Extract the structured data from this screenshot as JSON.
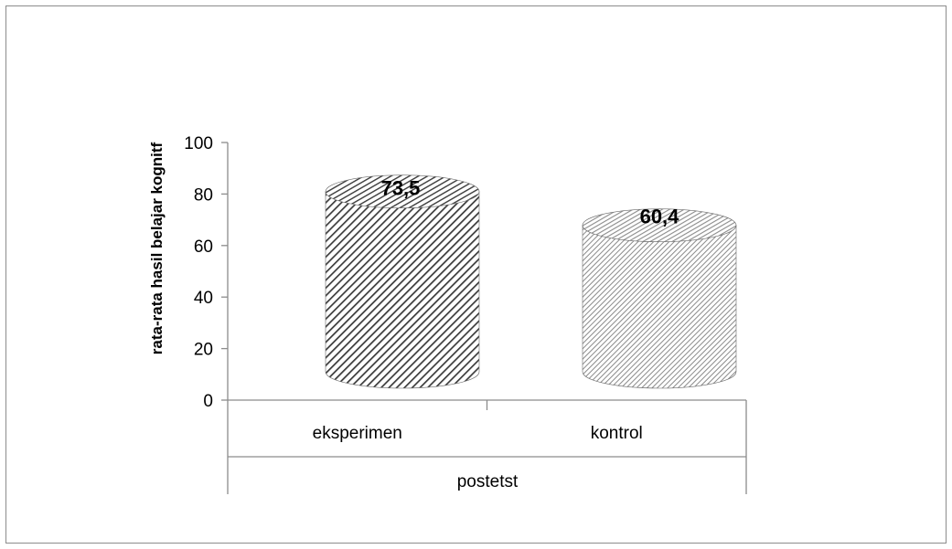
{
  "chart_data": {
    "type": "bar",
    "bar_shape": "cylinder",
    "title": "",
    "ylabel": "rata-rata hasil belajar kognitf",
    "xlabel": "postetst",
    "categories": [
      "eksperimen",
      "kontrol"
    ],
    "values": [
      73.5,
      60.4
    ],
    "data_labels": [
      "73,5",
      "60,4"
    ],
    "ylim": [
      0,
      100
    ],
    "yticks": [
      0,
      20,
      40,
      60,
      80,
      100
    ],
    "ytick_labels": [
      "0",
      "20",
      "40",
      "60",
      "80",
      "100"
    ],
    "grid": false,
    "legend": "none",
    "colors": {
      "series_1_pattern": "#3a3a3a",
      "series_2_pattern": "#8a8a8a",
      "axis": "#8c8c8c"
    }
  }
}
